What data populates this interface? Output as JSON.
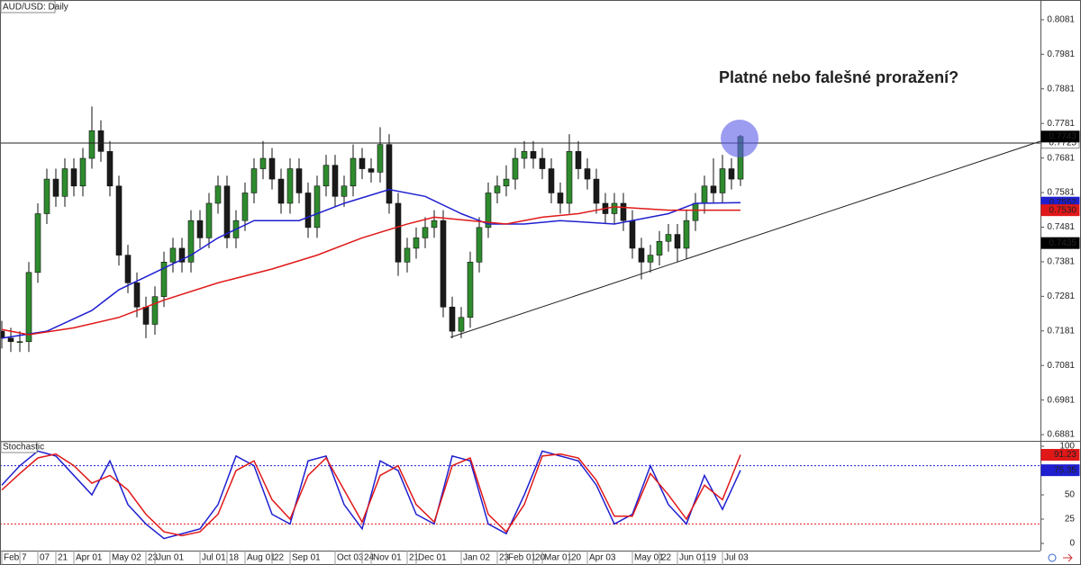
{
  "chart_data": [
    {
      "type": "candlestick",
      "title": "AUD/USD: Daily",
      "annotation": "Platné nebo falešné proražení?",
      "categories": [
        "Feb",
        null,
        "7",
        null,
        "07",
        null,
        "21",
        null,
        "Apr 01",
        null,
        null,
        null,
        "May 02",
        null,
        null,
        null,
        "23",
        "Jun 01",
        null,
        null,
        null,
        null,
        "Jul 01",
        null,
        null,
        "18",
        null,
        "Aug 01",
        null,
        null,
        "22",
        null,
        "Sep 01",
        null,
        null,
        null,
        null,
        "Oct 03",
        null,
        null,
        "24",
        "Nov 01",
        null,
        null,
        null,
        "21",
        "Dec 01",
        null,
        null,
        null,
        null,
        "Jan 02",
        null,
        null,
        null,
        "23",
        "Feb 01",
        null,
        null,
        "20",
        "Mar 01",
        null,
        null,
        "20",
        null,
        "Apr 03",
        null,
        null,
        null,
        null,
        "May 01",
        null,
        null,
        "22",
        null,
        "Jun 01",
        null,
        null,
        "19",
        null,
        "Jul 03",
        null,
        null
      ],
      "open": [
        0.718,
        0.716,
        0.715,
        0.715,
        0.735,
        0.752,
        0.762,
        0.757,
        0.765,
        0.76,
        0.768,
        0.776,
        0.77,
        0.76,
        0.74,
        0.732,
        0.725,
        0.72,
        0.728,
        0.738,
        0.742,
        0.738,
        0.75,
        0.745,
        0.755,
        0.76,
        0.745,
        0.75,
        0.758,
        0.765,
        0.768,
        0.762,
        0.755,
        0.765,
        0.758,
        0.748,
        0.76,
        0.766,
        0.757,
        0.76,
        0.768,
        0.765,
        0.764,
        0.772,
        0.755,
        0.738,
        0.742,
        0.745,
        0.748,
        0.75,
        0.725,
        0.718,
        0.722,
        0.738,
        0.748,
        0.758,
        0.76,
        0.762,
        0.768,
        0.77,
        0.768,
        0.765,
        0.758,
        0.755,
        0.77,
        0.765,
        0.762,
        0.755,
        0.752,
        0.755,
        0.75,
        0.742,
        0.738,
        0.74,
        0.744,
        0.746,
        0.742,
        0.75,
        0.755,
        0.76,
        0.758,
        0.765,
        0.762
      ],
      "high": [
        0.721,
        0.719,
        0.718,
        0.738,
        0.755,
        0.765,
        0.765,
        0.768,
        0.768,
        0.771,
        0.783,
        0.779,
        0.773,
        0.763,
        0.743,
        0.735,
        0.728,
        0.731,
        0.741,
        0.745,
        0.745,
        0.753,
        0.753,
        0.758,
        0.763,
        0.763,
        0.753,
        0.761,
        0.768,
        0.773,
        0.771,
        0.765,
        0.768,
        0.768,
        0.761,
        0.763,
        0.769,
        0.769,
        0.763,
        0.772,
        0.771,
        0.768,
        0.777,
        0.775,
        0.758,
        0.745,
        0.748,
        0.751,
        0.753,
        0.753,
        0.728,
        0.725,
        0.741,
        0.751,
        0.761,
        0.763,
        0.766,
        0.771,
        0.773,
        0.773,
        0.771,
        0.768,
        0.761,
        0.775,
        0.773,
        0.768,
        0.765,
        0.758,
        0.758,
        0.758,
        0.753,
        0.745,
        0.743,
        0.747,
        0.749,
        0.749,
        0.753,
        0.758,
        0.763,
        0.768,
        0.769,
        0.768,
        0.7748
      ],
      "low": [
        0.713,
        0.712,
        0.712,
        0.712,
        0.732,
        0.749,
        0.754,
        0.754,
        0.757,
        0.757,
        0.765,
        0.767,
        0.757,
        0.737,
        0.729,
        0.722,
        0.716,
        0.717,
        0.725,
        0.735,
        0.735,
        0.735,
        0.742,
        0.742,
        0.752,
        0.742,
        0.742,
        0.747,
        0.755,
        0.762,
        0.759,
        0.752,
        0.752,
        0.755,
        0.745,
        0.745,
        0.757,
        0.754,
        0.754,
        0.757,
        0.762,
        0.761,
        0.761,
        0.752,
        0.734,
        0.735,
        0.739,
        0.742,
        0.745,
        0.722,
        0.716,
        0.716,
        0.719,
        0.735,
        0.745,
        0.755,
        0.757,
        0.759,
        0.765,
        0.765,
        0.762,
        0.755,
        0.752,
        0.752,
        0.762,
        0.759,
        0.752,
        0.749,
        0.749,
        0.747,
        0.739,
        0.733,
        0.735,
        0.737,
        0.741,
        0.738,
        0.739,
        0.747,
        0.752,
        0.755,
        0.755,
        0.759,
        0.76
      ],
      "close": [
        0.716,
        0.715,
        0.715,
        0.735,
        0.752,
        0.762,
        0.757,
        0.765,
        0.76,
        0.768,
        0.776,
        0.77,
        0.76,
        0.74,
        0.732,
        0.725,
        0.72,
        0.728,
        0.738,
        0.742,
        0.738,
        0.75,
        0.745,
        0.755,
        0.76,
        0.745,
        0.75,
        0.758,
        0.765,
        0.768,
        0.762,
        0.755,
        0.765,
        0.758,
        0.748,
        0.76,
        0.766,
        0.757,
        0.76,
        0.768,
        0.765,
        0.764,
        0.772,
        0.755,
        0.738,
        0.742,
        0.745,
        0.748,
        0.75,
        0.725,
        0.718,
        0.722,
        0.738,
        0.748,
        0.758,
        0.76,
        0.762,
        0.768,
        0.77,
        0.768,
        0.765,
        0.758,
        0.755,
        0.77,
        0.765,
        0.762,
        0.755,
        0.752,
        0.755,
        0.75,
        0.742,
        0.738,
        0.74,
        0.744,
        0.746,
        0.742,
        0.75,
        0.755,
        0.76,
        0.758,
        0.765,
        0.762,
        0.7743
      ],
      "up_color": "#2e8b2e",
      "down_color": "#1a1a1a",
      "series": [
        {
          "color": "#1f1fd0",
          "x": [
            0,
            5,
            10,
            13,
            17,
            21,
            24,
            28,
            33,
            38,
            43,
            47,
            51,
            54,
            58,
            62,
            68,
            74,
            77,
            82
          ],
          "values": [
            0.716,
            0.718,
            0.724,
            0.73,
            0.735,
            0.74,
            0.745,
            0.75,
            0.75,
            0.755,
            0.759,
            0.757,
            0.752,
            0.749,
            0.749,
            0.75,
            0.749,
            0.752,
            0.755,
            0.7552
          ]
        },
        {
          "color": "#e01818",
          "x": [
            0,
            3,
            8,
            13,
            18,
            24,
            30,
            35,
            40,
            45,
            48,
            52,
            56,
            60,
            64,
            68,
            74,
            82
          ],
          "values": [
            0.7185,
            0.717,
            0.719,
            0.722,
            0.727,
            0.732,
            0.736,
            0.74,
            0.745,
            0.749,
            0.751,
            0.75,
            0.749,
            0.751,
            0.752,
            0.754,
            0.753,
            0.753
          ]
        }
      ],
      "ylim": [
        0.6863,
        0.8138
      ],
      "yticks": [
        0.8081,
        0.7981,
        0.7881,
        0.7781,
        0.7681,
        0.7581,
        0.7481,
        0.7381,
        0.7281,
        0.7181,
        0.7081,
        0.6981,
        0.6881
      ],
      "price_markers": [
        {
          "value": 0.7725,
          "color": "#ffffff"
        },
        {
          "value": 0.7743,
          "color": "#000000"
        },
        {
          "value": 0.7552,
          "color": "#1f1fd0"
        },
        {
          "value": 0.753,
          "label": "0.7530",
          "color": "#e01818"
        },
        {
          "value": 0.7435,
          "color": "#000000"
        }
      ]
    },
    {
      "type": "line",
      "title": "Stochastic",
      "x": [
        0,
        2,
        4,
        6,
        8,
        10,
        12,
        14,
        16,
        18,
        20,
        22,
        24,
        26,
        28,
        30,
        32,
        34,
        36,
        38,
        40,
        42,
        44,
        46,
        48,
        50,
        52,
        54,
        56,
        58,
        60,
        62,
        64,
        66,
        68,
        70,
        72,
        74,
        76,
        78,
        80,
        82
      ],
      "series": [
        {
          "color": "#1f1fd0",
          "values": [
            60,
            80,
            95,
            90,
            70,
            50,
            85,
            40,
            20,
            5,
            10,
            15,
            40,
            90,
            80,
            30,
            20,
            85,
            90,
            40,
            15,
            85,
            75,
            30,
            20,
            90,
            85,
            20,
            10,
            50,
            95,
            90,
            85,
            60,
            20,
            30,
            80,
            40,
            20,
            70,
            35,
            75.35
          ]
        },
        {
          "color": "#e01818",
          "values": [
            55,
            72,
            88,
            92,
            80,
            62,
            70,
            55,
            30,
            12,
            8,
            12,
            30,
            75,
            85,
            45,
            25,
            70,
            88,
            55,
            22,
            70,
            80,
            40,
            22,
            80,
            88,
            30,
            12,
            40,
            90,
            92,
            88,
            65,
            28,
            28,
            72,
            50,
            25,
            60,
            45,
            91.23
          ]
        }
      ],
      "ylim": [
        -7.4,
        105.6
      ],
      "yticks": [
        0,
        25,
        50,
        75,
        100
      ],
      "levels": [
        {
          "value": 80,
          "color": "#1f1fd0"
        },
        {
          "value": 20,
          "color": "#e01818"
        }
      ],
      "markers": [
        {
          "value": 91.23,
          "color": "#e01818"
        },
        {
          "value": 75.35,
          "color": "#1f1fd0"
        }
      ]
    }
  ]
}
